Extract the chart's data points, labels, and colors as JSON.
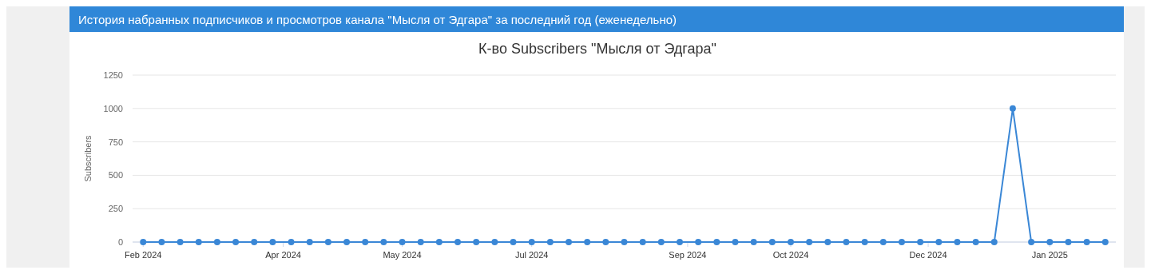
{
  "chart_data": {
    "type": "line",
    "title": "История набранных подписчиков и просмотров канала \"Мысля от Эдгара\" за последний год (еженедельно)",
    "subtitle": "К-во Subscribers \"Мысля от Эдгара\"",
    "ylabel": "Subscribers",
    "x": [
      "2024-02-08",
      "2024-02-15",
      "2024-02-22",
      "2024-02-29",
      "2024-03-07",
      "2024-03-14",
      "2024-03-21",
      "2024-03-28",
      "2024-04-04",
      "2024-04-11",
      "2024-04-18",
      "2024-04-25",
      "2024-05-02",
      "2024-05-09",
      "2024-05-16",
      "2024-05-23",
      "2024-05-30",
      "2024-06-06",
      "2024-06-13",
      "2024-06-20",
      "2024-06-27",
      "2024-07-04",
      "2024-07-11",
      "2024-07-18",
      "2024-07-25",
      "2024-08-01",
      "2024-08-08",
      "2024-08-15",
      "2024-08-22",
      "2024-08-29",
      "2024-09-05",
      "2024-09-12",
      "2024-09-19",
      "2024-09-26",
      "2024-10-03",
      "2024-10-10",
      "2024-10-17",
      "2024-10-24",
      "2024-10-31",
      "2024-11-07",
      "2024-11-14",
      "2024-11-21",
      "2024-11-28",
      "2024-12-05",
      "2024-12-12",
      "2024-12-19",
      "2024-12-26",
      "2025-01-02",
      "2025-01-09",
      "2025-01-16",
      "2025-01-23",
      "2025-01-30",
      "2025-02-06"
    ],
    "series": [
      {
        "name": null,
        "color": "#3a87d6",
        "values": [
          0,
          0,
          0,
          0,
          0,
          0,
          0,
          0,
          0,
          0,
          0,
          0,
          0,
          0,
          0,
          0,
          0,
          0,
          0,
          0,
          0,
          0,
          0,
          0,
          0,
          0,
          0,
          0,
          0,
          0,
          0,
          0,
          0,
          0,
          0,
          0,
          0,
          0,
          0,
          0,
          0,
          0,
          0,
          0,
          0,
          0,
          0,
          1000,
          0,
          0,
          0,
          0,
          0
        ]
      }
    ],
    "xlim": [
      "2024-02-04",
      "2025-02-10"
    ],
    "xticks": [
      {
        "value": "2024-02-08",
        "label": "Feb 2024"
      },
      {
        "value": "2024-04-01",
        "label": "Apr 2024"
      },
      {
        "value": "2024-05-16",
        "label": "May 2024"
      },
      {
        "value": "2024-07-04",
        "label": "Jul 2024"
      },
      {
        "value": "2024-09-01",
        "label": "Sep 2024"
      },
      {
        "value": "2024-10-10",
        "label": "Oct 2024"
      },
      {
        "value": "2024-12-01",
        "label": "Dec 2024"
      },
      {
        "value": "2025-01-16",
        "label": "Jan 2025"
      }
    ],
    "ylim": [
      0,
      1250
    ],
    "yticks": [
      0,
      250,
      500,
      750,
      1000,
      1250
    ],
    "grid": "y",
    "marker": "circle",
    "line_style": "solid"
  }
}
